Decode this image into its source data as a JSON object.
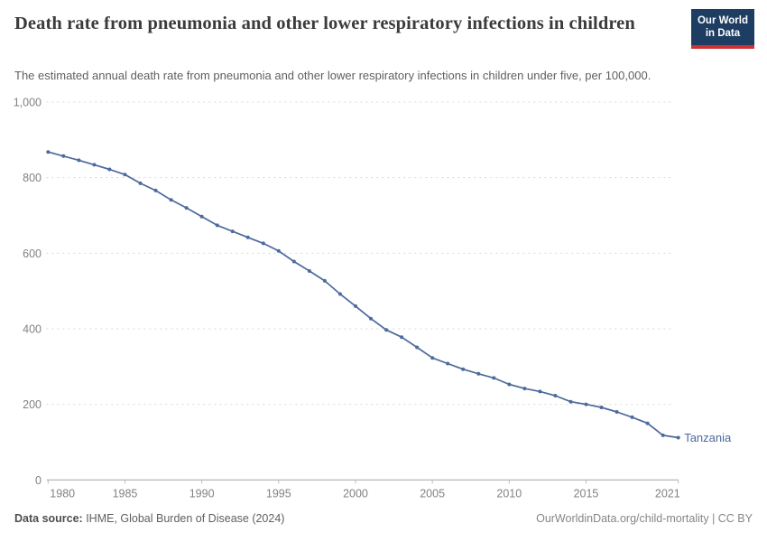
{
  "header": {
    "title": "Death rate from pneumonia and other lower respiratory infections in children",
    "subtitle": "The estimated annual death rate from pneumonia and other lower respiratory infections in children under five, per 100,000.",
    "logo": {
      "line1": "Our World",
      "line2": "in Data",
      "bg_color": "#1d3d63",
      "accent_color": "#cd3235"
    }
  },
  "chart_data": {
    "type": "line",
    "title": "Death rate from pneumonia and other lower respiratory infections in children",
    "xlabel": "",
    "ylabel": "",
    "xlim": [
      1980,
      2021
    ],
    "ylim": [
      0,
      1000
    ],
    "grid": "horizontal-dashed",
    "legend_position": "end-of-line-label",
    "x_ticks": [
      1980,
      1985,
      1990,
      1995,
      2000,
      2005,
      2010,
      2015,
      2021
    ],
    "x_tick_labels": [
      "1980",
      "1985",
      "1990",
      "1995",
      "2000",
      "2005",
      "2010",
      "2015",
      "2021"
    ],
    "y_ticks": [
      0,
      200,
      400,
      600,
      800,
      1000
    ],
    "y_tick_labels": [
      "0",
      "200",
      "400",
      "600",
      "800",
      "1,000"
    ],
    "series": [
      {
        "name": "Tanzania",
        "color": "#4c6a9c",
        "x": [
          1980,
          1981,
          1982,
          1983,
          1984,
          1985,
          1986,
          1987,
          1988,
          1989,
          1990,
          1991,
          1992,
          1993,
          1994,
          1995,
          1996,
          1997,
          1998,
          1999,
          2000,
          2001,
          2002,
          2003,
          2004,
          2005,
          2006,
          2007,
          2008,
          2009,
          2010,
          2011,
          2012,
          2013,
          2014,
          2015,
          2016,
          2017,
          2018,
          2019,
          2020,
          2021
        ],
        "values": [
          868,
          857,
          846,
          834,
          822,
          808,
          785,
          766,
          741,
          720,
          697,
          674,
          658,
          642,
          626,
          606,
          578,
          553,
          527,
          492,
          460,
          427,
          397,
          378,
          351,
          323,
          308,
          293,
          281,
          270,
          253,
          242,
          234,
          223,
          207,
          200,
          192,
          180,
          166,
          150,
          118,
          112
        ]
      }
    ]
  },
  "footer": {
    "source_label": "Data source:",
    "source_value": " IHME, Global Burden of Disease (2024)",
    "credit": "OurWorldinData.org/child-mortality | CC BY"
  }
}
